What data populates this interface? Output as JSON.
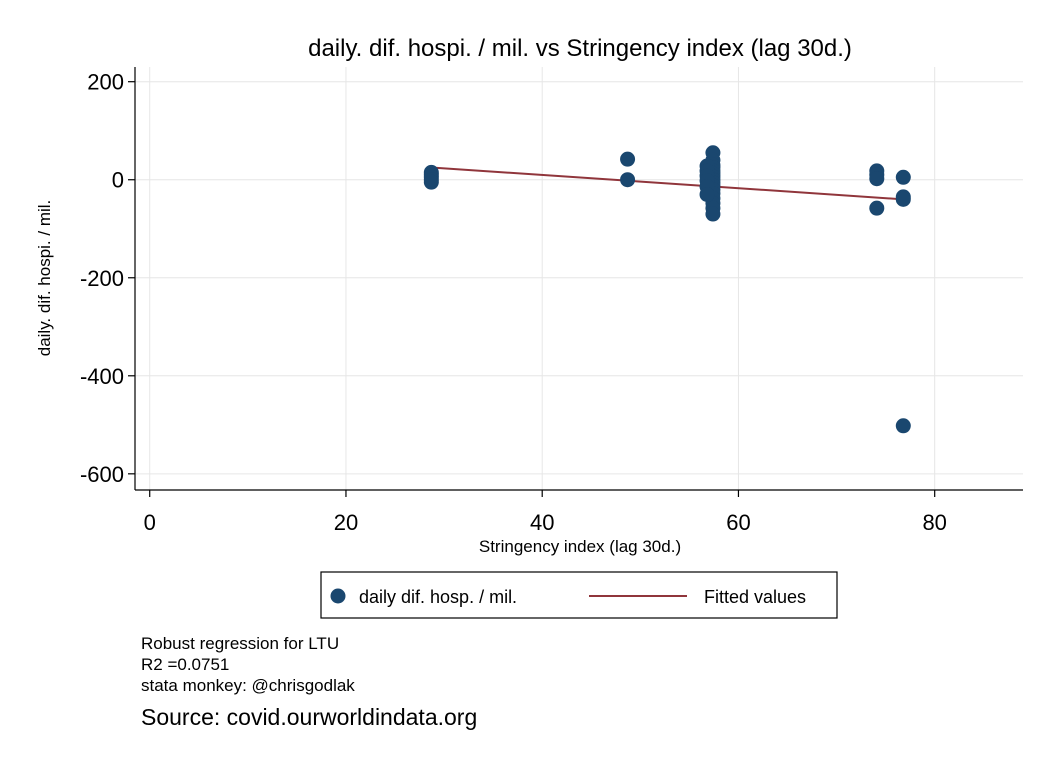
{
  "chart_data": {
    "type": "scatter",
    "title": "daily. dif. hospi. / mil. vs Stringency index (lag 30d.)",
    "xlabel": "Stringency index (lag 30d.)",
    "ylabel": "daily. dif. hospi. / mil.",
    "xlim": [
      -1.5,
      89
    ],
    "ylim": [
      -633,
      230
    ],
    "xticks": [
      0,
      20,
      40,
      60,
      80
    ],
    "yticks": [
      200,
      0,
      -200,
      -400,
      -600
    ],
    "grid": true,
    "legend_position": "bottom",
    "series": [
      {
        "name": "daily dif. hosp. / mil.",
        "kind": "scatter",
        "color": "#1a476f",
        "points": [
          [
            28.7,
            15
          ],
          [
            28.7,
            10
          ],
          [
            28.7,
            5
          ],
          [
            28.7,
            0
          ],
          [
            28.7,
            -5
          ],
          [
            48.7,
            42
          ],
          [
            48.7,
            0
          ],
          [
            57.4,
            55
          ],
          [
            57.4,
            40
          ],
          [
            57.4,
            30
          ],
          [
            57.4,
            25
          ],
          [
            57.4,
            18
          ],
          [
            57.4,
            12
          ],
          [
            57.4,
            6
          ],
          [
            57.4,
            0
          ],
          [
            57.4,
            -6
          ],
          [
            57.4,
            -12
          ],
          [
            57.4,
            -20
          ],
          [
            57.4,
            -28
          ],
          [
            57.4,
            -38
          ],
          [
            57.4,
            -48
          ],
          [
            57.4,
            -58
          ],
          [
            57.4,
            -70
          ],
          [
            56.8,
            28
          ],
          [
            56.8,
            18
          ],
          [
            56.8,
            8
          ],
          [
            56.8,
            -2
          ],
          [
            56.8,
            -14
          ],
          [
            56.8,
            -30
          ],
          [
            74.1,
            18
          ],
          [
            74.1,
            10
          ],
          [
            74.1,
            2
          ],
          [
            74.1,
            -58
          ],
          [
            76.8,
            5
          ],
          [
            76.8,
            -35
          ],
          [
            76.8,
            -40
          ],
          [
            76.8,
            -502
          ]
        ]
      },
      {
        "name": "Fitted values",
        "kind": "line",
        "color": "#90353b",
        "points": [
          [
            28.7,
            25
          ],
          [
            76.8,
            -40
          ]
        ]
      }
    ]
  },
  "notes": {
    "line1": "Robust regression for LTU",
    "line2": "R2 =0.0751",
    "line3": "stata monkey: @chrisgodlak",
    "source": "Source: covid.ourworldindata.org"
  }
}
